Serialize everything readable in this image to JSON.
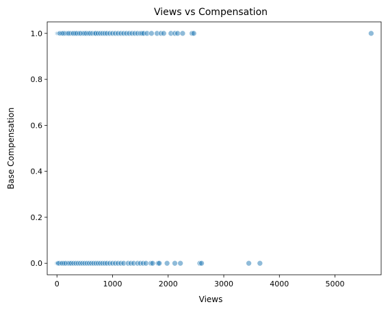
{
  "chart_data": {
    "type": "scatter",
    "title": "Views vs Compensation",
    "xlabel": "Views",
    "ylabel": "Base Compensation",
    "xlim": [
      -175,
      5830
    ],
    "ylim": [
      -0.05,
      1.05
    ],
    "xticks": [
      0,
      1000,
      2000,
      3000,
      4000,
      5000
    ],
    "yticks": [
      0.0,
      0.2,
      0.4,
      0.6,
      0.8,
      1.0
    ],
    "xtick_labels": [
      "0",
      "1000",
      "2000",
      "3000",
      "4000",
      "5000"
    ],
    "ytick_labels": [
      "0.0",
      "0.2",
      "0.4",
      "0.6",
      "0.8",
      "1.0"
    ],
    "grid": false,
    "marker_color": "#1f77b4",
    "marker_opacity": 0.5,
    "series": [
      {
        "x": [
          0,
          5,
          10,
          15,
          20,
          30,
          40,
          50,
          60,
          80,
          100,
          120,
          150,
          180,
          200,
          220,
          250,
          280,
          300,
          330,
          360,
          400,
          430,
          470,
          500,
          530,
          570,
          600,
          640,
          680,
          700,
          740,
          780,
          820,
          860,
          900,
          950,
          1000,
          1050,
          1100,
          1150,
          1200,
          1250,
          1300,
          1350,
          1400,
          1450,
          1500,
          1530,
          1560,
          1620,
          1700,
          1800,
          1870,
          1920,
          2050,
          2120,
          2170,
          2260,
          2430,
          2460
        ],
        "y": [
          1,
          1,
          1,
          1,
          1,
          1,
          1,
          1,
          1,
          1,
          1,
          1,
          1,
          1,
          1,
          1,
          1,
          1,
          1,
          1,
          1,
          1,
          1,
          1,
          1,
          1,
          1,
          1,
          1,
          1,
          1,
          1,
          1,
          1,
          1,
          1,
          1,
          1,
          1,
          1,
          1,
          1,
          1,
          1,
          1,
          1,
          1,
          1,
          1,
          1,
          1,
          1,
          1,
          1,
          1,
          1,
          1,
          1,
          1,
          1,
          1
        ]
      },
      {
        "x": [
          5650
        ],
        "y": [
          1
        ]
      },
      {
        "x": [
          0,
          5,
          10,
          20,
          30,
          50,
          80,
          100,
          130,
          160,
          200,
          230,
          260,
          300,
          340,
          380,
          420,
          460,
          500,
          540,
          580,
          620,
          660,
          700,
          740,
          780,
          820,
          860,
          900,
          950,
          1000,
          1050,
          1100,
          1150,
          1200,
          1280,
          1330,
          1380,
          1450,
          1500,
          1550,
          1600,
          1690,
          1720,
          1820,
          1840,
          1980,
          2120,
          2220,
          2570,
          2600,
          3450,
          3650
        ],
        "y": [
          0,
          0,
          0,
          0,
          0,
          0,
          0,
          0,
          0,
          0,
          0,
          0,
          0,
          0,
          0,
          0,
          0,
          0,
          0,
          0,
          0,
          0,
          0,
          0,
          0,
          0,
          0,
          0,
          0,
          0,
          0,
          0,
          0,
          0,
          0,
          0,
          0,
          0,
          0,
          0,
          0,
          0,
          0,
          0,
          0,
          0,
          0,
          0,
          0,
          0,
          0,
          0,
          0
        ]
      }
    ]
  }
}
